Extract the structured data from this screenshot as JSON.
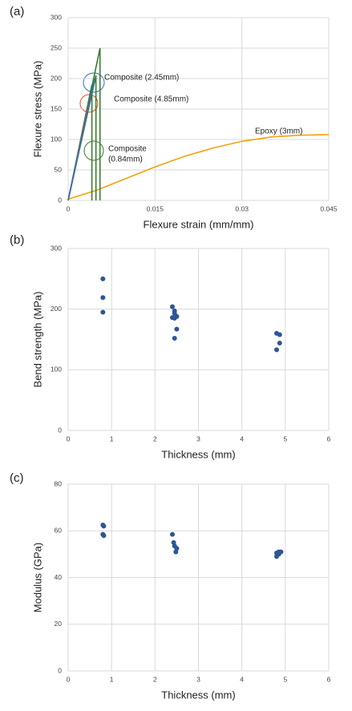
{
  "chart_data": [
    {
      "type": "line",
      "panel_label": "(a)",
      "x_label": "Flexure strain (mm/mm)",
      "y_label": "Flexure stress (MPa)",
      "xlim": [
        0,
        0.045
      ],
      "xticks": [
        0,
        0.015,
        0.03,
        0.045
      ],
      "ylim": [
        0,
        300
      ],
      "yticks": [
        0,
        50,
        100,
        150,
        200,
        250,
        300
      ],
      "grid": true,
      "series": [
        {
          "color": "#f0a30a",
          "x": [
            0,
            0.005,
            0.01,
            0.015,
            0.02,
            0.025,
            0.03,
            0.035,
            0.04,
            0.045
          ],
          "values": [
            2,
            17,
            36,
            55,
            72,
            86,
            97,
            104,
            107,
            108
          ]
        },
        {
          "color": "#3a7d2c",
          "x": [
            0,
            0.0055,
            0.0055
          ],
          "values": [
            0,
            250,
            0
          ]
        },
        {
          "color": "#3a7d2c",
          "x": [
            0,
            0.0048,
            0.0048
          ],
          "values": [
            0,
            205,
            0
          ]
        },
        {
          "color": "#3a7d2c",
          "x": [
            0,
            0.0041,
            0.0041
          ],
          "values": [
            0,
            190,
            0
          ]
        },
        {
          "color": "#e0502a",
          "x": [
            0,
            0.0036
          ],
          "values": [
            0,
            160
          ]
        },
        {
          "color": "#2f6fc0",
          "x": [
            0,
            0.0046
          ],
          "values": [
            0,
            200
          ]
        }
      ],
      "annotations": [
        "Composite (2.45mm)",
        "Composite (4.85mm)",
        "Composite",
        "(0.84mm)",
        "Epoxy (3mm)"
      ]
    },
    {
      "type": "scatter",
      "panel_label": "(b)",
      "x_label": "Thickness (mm)",
      "y_label": "Bend  strength (MPa)",
      "xlim": [
        0,
        6
      ],
      "xticks": [
        0,
        1,
        2,
        3,
        4,
        5,
        6
      ],
      "ylim": [
        0,
        300
      ],
      "yticks": [
        0,
        100,
        200,
        300
      ],
      "grid": true,
      "color": "#2e5597",
      "x": [
        0.8,
        0.8,
        0.8,
        2.4,
        2.45,
        2.45,
        2.4,
        2.45,
        2.5,
        2.5,
        2.45,
        4.8,
        4.87,
        4.87,
        4.8
      ],
      "values": [
        250,
        219,
        195,
        204,
        197,
        193,
        186,
        185,
        188,
        167,
        152,
        160,
        158,
        144,
        133
      ]
    },
    {
      "type": "scatter",
      "panel_label": "(c)",
      "x_label": "Thickness (mm)",
      "y_label": "Modulus (GPa)",
      "xlim": [
        0,
        6
      ],
      "xticks": [
        0,
        1,
        2,
        3,
        4,
        5,
        6
      ],
      "ylim": [
        0,
        80
      ],
      "yticks": [
        0,
        20,
        40,
        60,
        80
      ],
      "grid": true,
      "color": "#2e5597",
      "x": [
        0.8,
        0.82,
        0.8,
        0.82,
        2.4,
        2.43,
        2.45,
        2.5,
        2.48,
        4.8,
        4.85,
        4.8,
        4.85,
        4.9
      ],
      "values": [
        62.5,
        62,
        58.5,
        58,
        58.5,
        55,
        53.5,
        52.5,
        51,
        50.5,
        50,
        49,
        51,
        51
      ]
    }
  ]
}
